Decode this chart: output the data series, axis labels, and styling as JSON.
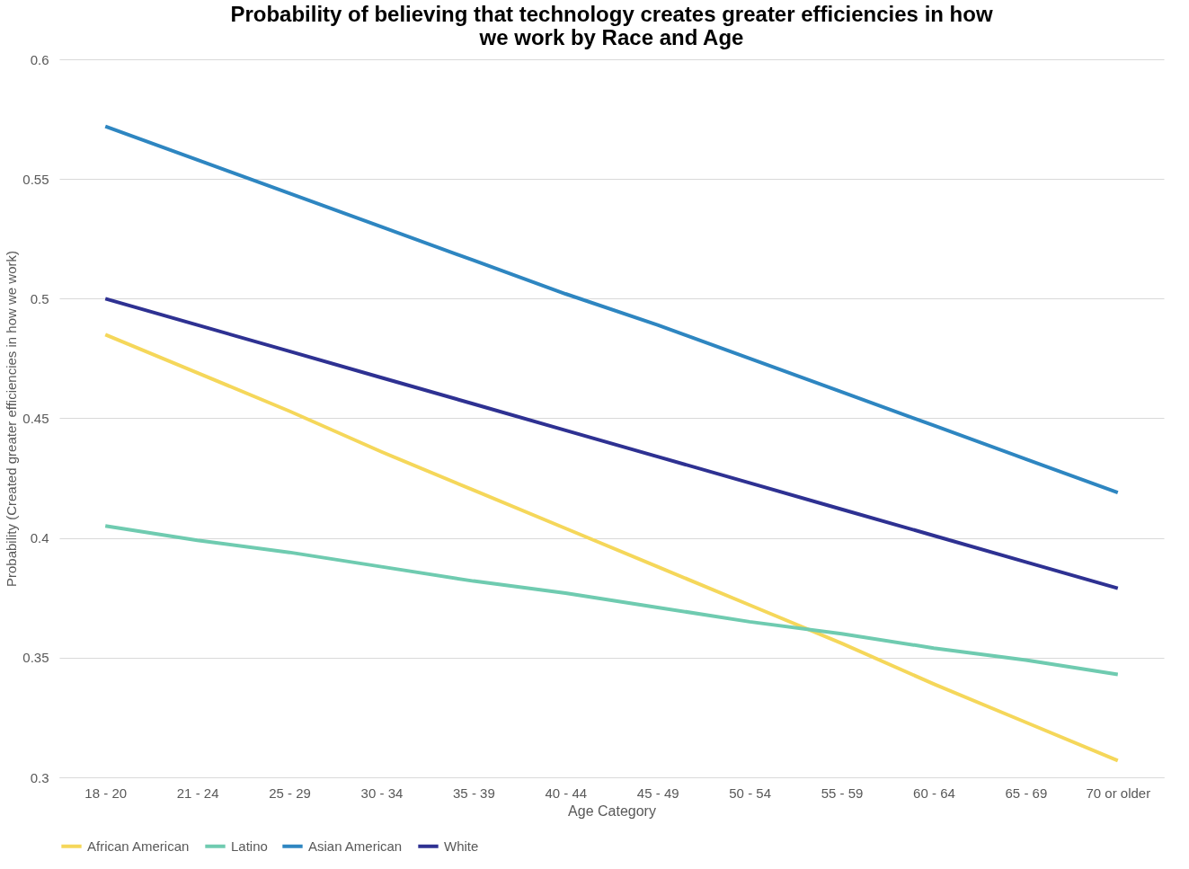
{
  "chart_data": {
    "type": "line",
    "title": "Probability of believing that technology creates greater efficiencies in how we work by Race and Age",
    "xlabel": "Age Category",
    "ylabel": "Probability (Created greater efficiencies in how we work)",
    "categories": [
      "18 - 20",
      "21 - 24",
      "25 - 29",
      "30 - 34",
      "35 - 39",
      "40 - 44",
      "45 - 49",
      "50 - 54",
      "55 - 59",
      "60 - 64",
      "65 - 69",
      "70 or older"
    ],
    "series": [
      {
        "name": "African American",
        "color": "#f5d75a",
        "values": [
          0.485,
          0.469,
          0.453,
          0.436,
          0.42,
          0.404,
          0.388,
          0.372,
          0.356,
          0.339,
          0.323,
          0.307
        ]
      },
      {
        "name": "Latino",
        "color": "#6fcbb0",
        "values": [
          0.405,
          0.399,
          0.394,
          0.388,
          0.382,
          0.377,
          0.371,
          0.365,
          0.36,
          0.354,
          0.349,
          0.343
        ]
      },
      {
        "name": "Asian American",
        "color": "#2e86c1",
        "values": [
          0.572,
          0.558,
          0.544,
          0.53,
          0.516,
          0.502,
          0.489,
          0.475,
          0.461,
          0.447,
          0.433,
          0.419
        ]
      },
      {
        "name": "White",
        "color": "#2e3192",
        "values": [
          0.5,
          0.489,
          0.478,
          0.467,
          0.456,
          0.445,
          0.434,
          0.423,
          0.412,
          0.401,
          0.39,
          0.379
        ]
      }
    ],
    "ylim": [
      0.3,
      0.6
    ],
    "yticks": [
      0.3,
      0.35,
      0.4,
      0.45,
      0.5,
      0.55,
      0.6
    ],
    "grid": "y",
    "legend": "bottom",
    "marker": "none",
    "line_style": "solid"
  }
}
